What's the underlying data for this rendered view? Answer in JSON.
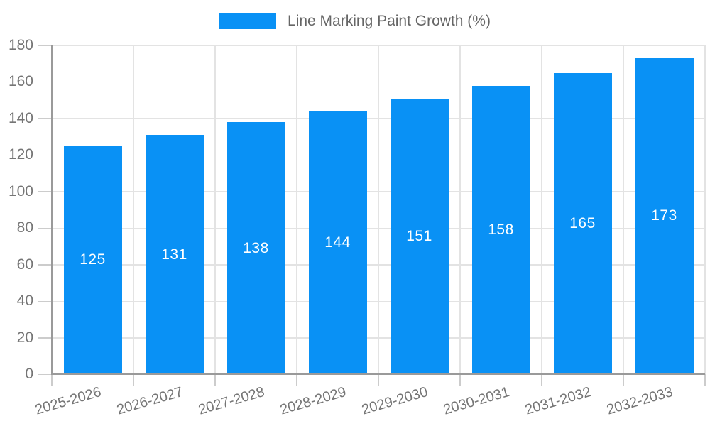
{
  "legend": {
    "label": "Line Marking Paint Growth (%)"
  },
  "chart_data": {
    "type": "bar",
    "title": "",
    "series_name": "Line Marking Paint Growth (%)",
    "categories": [
      "2025-2026",
      "2026-2027",
      "2027-2028",
      "2028-2029",
      "2029-2030",
      "2030-2031",
      "2031-2032",
      "2032-2033"
    ],
    "values": [
      125,
      131,
      138,
      144,
      151,
      158,
      165,
      173
    ],
    "xlabel": "",
    "ylabel": "",
    "ylim": [
      0,
      180
    ],
    "y_ticks": [
      0,
      20,
      40,
      60,
      80,
      100,
      120,
      140,
      160,
      180
    ],
    "grid": true,
    "legend_position": "top-center",
    "bar_labels_shown": true,
    "colors": {
      "bar": "#0991f5",
      "bar_label_text": "#ffffff",
      "axis_text": "#757575",
      "legend_text": "#666666",
      "gridline": "#e3e3e3",
      "tick_line": "#cccccc",
      "axis_line": "#9a9a9a",
      "background": "#ffffff"
    }
  }
}
